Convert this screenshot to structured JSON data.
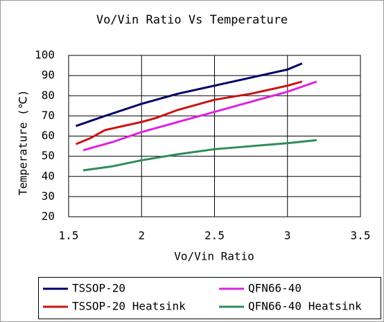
{
  "chart_data": {
    "type": "line",
    "title": "Vo/Vin Ratio Vs Temperature",
    "x_label": "Vo/Vin Ratio",
    "y_label": "Temperature (℃)",
    "xlim": [
      1.5,
      3.5
    ],
    "xticks": [
      1.5,
      2,
      2.5,
      3,
      3.5
    ],
    "ylim": [
      20,
      100
    ],
    "yticks": [
      20,
      30,
      40,
      50,
      60,
      70,
      80,
      90,
      100
    ],
    "grid": true,
    "legend": "bottom",
    "series": [
      {
        "name": "TSSOP-20",
        "color": "#000066",
        "x": [
          1.55,
          1.75,
          2.0,
          2.25,
          2.5,
          2.75,
          3.0,
          3.1
        ],
        "values": [
          65,
          70,
          76,
          81,
          85,
          89,
          93,
          96
        ]
      },
      {
        "name": "QFN66-40",
        "color": "#e020e0",
        "x": [
          1.6,
          1.8,
          2.0,
          2.25,
          2.5,
          2.75,
          3.0,
          3.2
        ],
        "values": [
          53,
          57,
          62,
          67,
          72,
          77,
          82,
          87
        ]
      },
      {
        "name": "TSSOP-20 Heatsink",
        "color": "#cc1111",
        "x": [
          1.55,
          1.65,
          1.75,
          2.0,
          2.1,
          2.25,
          2.5,
          2.75,
          3.0,
          3.1
        ],
        "values": [
          56,
          59,
          63,
          67,
          69,
          73,
          78,
          81,
          85,
          87
        ]
      },
      {
        "name": "QFN66-40 Heatsink",
        "color": "#2e8b57",
        "x": [
          1.6,
          1.8,
          2.0,
          2.25,
          2.5,
          2.75,
          3.0,
          3.2
        ],
        "values": [
          43,
          45,
          48,
          51,
          53.5,
          55,
          56.5,
          58
        ]
      }
    ]
  }
}
